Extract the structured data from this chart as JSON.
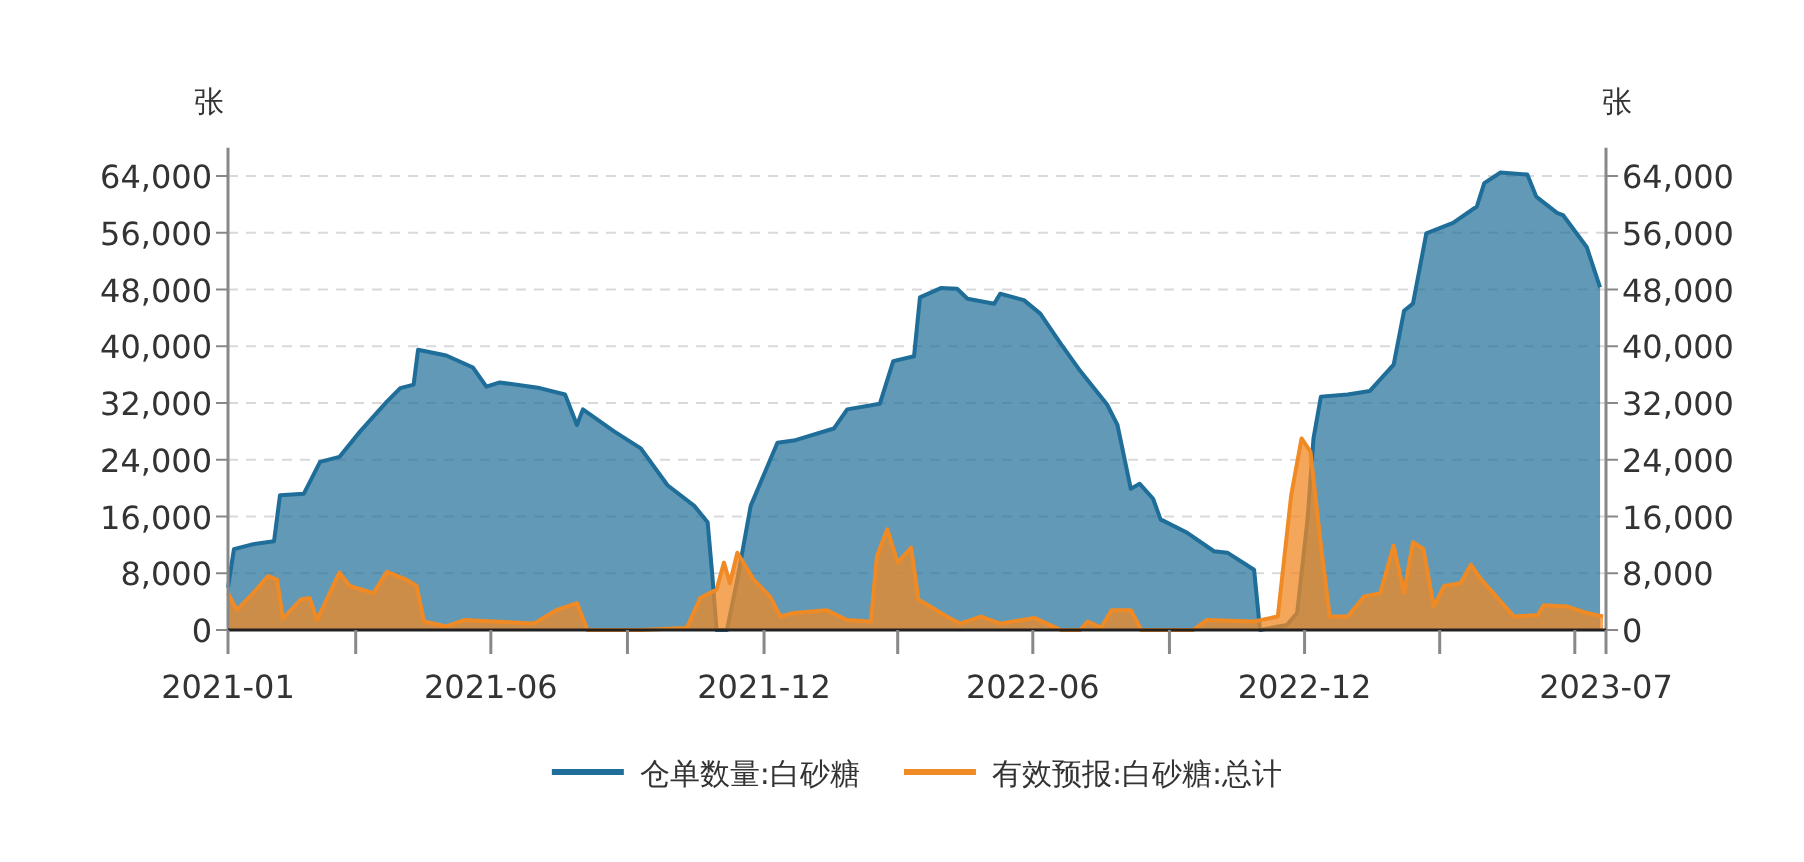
{
  "chart_data": {
    "type": "area",
    "ylabel": "张",
    "y2label": "张",
    "xlim": [
      "2021-01-04",
      "2023-07-21"
    ],
    "xticks": [
      {
        "value": "2021-01-04",
        "label": "2021-01"
      },
      {
        "value": "2021-03-31",
        "label": null
      },
      {
        "value": "2021-06-30",
        "label": "2021-06"
      },
      {
        "value": "2021-09-30",
        "label": null
      },
      {
        "value": "2021-12-31",
        "label": "2021-12"
      },
      {
        "value": "2022-03-31",
        "label": null
      },
      {
        "value": "2022-06-30",
        "label": "2022-06"
      },
      {
        "value": "2022-09-30",
        "label": null
      },
      {
        "value": "2022-12-30",
        "label": "2022-12"
      },
      {
        "value": "2023-03-31",
        "label": null
      },
      {
        "value": "2023-06-30",
        "label": null
      },
      {
        "value": "2023-07-21",
        "label": "2023-07"
      }
    ],
    "ylim": [
      0,
      68000
    ],
    "yticks": [
      0,
      {
        "value": 8000,
        "label": "8,000"
      },
      {
        "value": 16000,
        "label": "16,000"
      },
      {
        "value": 24000,
        "label": "24,000"
      },
      {
        "value": 32000,
        "label": "32,000"
      },
      {
        "value": 40000,
        "label": "40,000"
      },
      {
        "value": 48000,
        "label": "48,000"
      },
      {
        "value": 56000,
        "label": "56,000"
      },
      {
        "value": 64000,
        "label": "64,000"
      }
    ],
    "y2lim": [
      0,
      68000
    ],
    "y2ticks": [
      0,
      {
        "value": 8000,
        "label": "8,000"
      },
      {
        "value": 16000,
        "label": "16,000"
      },
      {
        "value": 24000,
        "label": "24,000"
      },
      {
        "value": 32000,
        "label": "32,000"
      },
      {
        "value": 40000,
        "label": "40,000"
      },
      {
        "value": 48000,
        "label": "48,000"
      },
      {
        "value": 56000,
        "label": "56,000"
      },
      {
        "value": 64000,
        "label": "64,000"
      }
    ],
    "grid": "y",
    "legend": "bottom",
    "series": [
      {
        "name": "仓单数量:白砂糖",
        "color": "#1f6d99",
        "x": [
          "2021-01-04",
          "2021-01-08",
          "2021-01-21",
          "2021-02-04",
          "2021-02-08",
          "2021-02-24",
          "2021-03-07",
          "2021-03-20",
          "2021-04-03",
          "2021-04-21",
          "2021-04-30",
          "2021-05-09",
          "2021-05-12",
          "2021-05-31",
          "2021-06-18",
          "2021-06-27",
          "2021-07-06",
          "2021-08-02",
          "2021-08-19",
          "2021-08-27",
          "2021-08-31",
          "2021-09-21",
          "2021-10-09",
          "2021-10-27",
          "2021-11-14",
          "2021-11-23",
          "2021-11-26",
          "2021-11-29",
          "2021-12-06",
          "2021-12-13",
          "2021-12-22",
          "2022-01-09",
          "2022-01-20",
          "2022-02-16",
          "2022-02-25",
          "2022-03-19",
          "2022-03-28",
          "2022-04-11",
          "2022-04-15",
          "2022-04-29",
          "2022-05-10",
          "2022-05-17",
          "2022-06-04",
          "2022-06-08",
          "2022-06-24",
          "2022-07-05",
          "2022-07-19",
          "2022-08-01",
          "2022-08-19",
          "2022-08-26",
          "2022-09-04",
          "2022-09-10",
          "2022-09-19",
          "2022-09-24",
          "2022-10-12",
          "2022-10-30",
          "2022-11-08",
          "2022-11-26",
          "2022-11-30",
          "2022-12-18",
          "2022-12-25",
          "2023-01-01",
          "2023-01-05",
          "2023-01-10",
          "2023-01-28",
          "2023-02-12",
          "2023-02-28",
          "2023-03-07",
          "2023-03-13",
          "2023-03-22",
          "2023-04-09",
          "2023-04-25",
          "2023-04-30",
          "2023-05-11",
          "2023-05-29",
          "2023-06-04",
          "2023-06-18",
          "2023-06-22",
          "2023-07-08",
          "2023-07-17"
        ],
        "values": [
          6000,
          11400,
          12100,
          12500,
          19000,
          19200,
          23700,
          24400,
          28000,
          32200,
          34100,
          34600,
          39500,
          38700,
          37000,
          34300,
          34900,
          34100,
          33200,
          28900,
          31100,
          28000,
          25600,
          20400,
          17500,
          15200,
          8100,
          0,
          0,
          7100,
          17500,
          26400,
          26700,
          28400,
          31100,
          31900,
          37900,
          38600,
          46900,
          48200,
          48100,
          46700,
          46000,
          47400,
          46500,
          44600,
          40300,
          36500,
          31800,
          28900,
          19900,
          20600,
          18500,
          15600,
          13700,
          11100,
          10900,
          8500,
          0,
          700,
          2400,
          15600,
          27000,
          32900,
          33200,
          33700,
          37400,
          45000,
          46000,
          55900,
          57400,
          59700,
          63000,
          64500,
          64200,
          61100,
          58800,
          58500,
          54000,
          48300
        ]
      },
      {
        "name": "有效预报:白砂糖:总计",
        "color": "#f08a24",
        "x": [
          "2021-01-04",
          "2021-01-10",
          "2021-01-21",
          "2021-01-31",
          "2021-02-06",
          "2021-02-10",
          "2021-02-22",
          "2021-02-28",
          "2021-03-05",
          "2021-03-20",
          "2021-03-27",
          "2021-04-12",
          "2021-04-21",
          "2021-05-04",
          "2021-05-11",
          "2021-05-16",
          "2021-05-31",
          "2021-06-12",
          "2021-07-02",
          "2021-07-29",
          "2021-08-13",
          "2021-08-27",
          "2021-09-03",
          "2021-10-09",
          "2021-11-09",
          "2021-11-18",
          "2021-11-29",
          "2021-12-04",
          "2021-12-08",
          "2021-12-13",
          "2021-12-24",
          "2022-01-04",
          "2022-01-11",
          "2022-01-20",
          "2022-02-11",
          "2022-02-25",
          "2022-03-13",
          "2022-03-17",
          "2022-03-24",
          "2022-03-31",
          "2022-04-09",
          "2022-04-14",
          "2022-05-03",
          "2022-05-12",
          "2022-05-26",
          "2022-06-08",
          "2022-07-01",
          "2022-07-19",
          "2022-08-01",
          "2022-08-06",
          "2022-08-15",
          "2022-08-22",
          "2022-09-04",
          "2022-09-11",
          "2022-10-16",
          "2022-10-25",
          "2022-11-26",
          "2022-12-12",
          "2022-12-21",
          "2022-12-28",
          "2023-01-03",
          "2023-01-10",
          "2023-01-16",
          "2023-01-28",
          "2023-02-08",
          "2023-02-19",
          "2023-02-28",
          "2023-03-07",
          "2023-03-13",
          "2023-03-20",
          "2023-03-27",
          "2023-04-03",
          "2023-04-14",
          "2023-04-21",
          "2023-04-28",
          "2023-05-20",
          "2023-06-05",
          "2023-06-09",
          "2023-06-25",
          "2023-07-08",
          "2023-07-19"
        ],
        "values": [
          5200,
          2800,
          5200,
          7600,
          7100,
          1600,
          4300,
          4500,
          1400,
          8100,
          6200,
          5200,
          8200,
          7100,
          6200,
          1200,
          500,
          1400,
          1200,
          900,
          2800,
          3800,
          0,
          0,
          300,
          4500,
          5700,
          9500,
          6600,
          10900,
          7100,
          4700,
          1900,
          2400,
          2800,
          1400,
          1200,
          10400,
          14200,
          9500,
          11600,
          4300,
          1900,
          900,
          1900,
          900,
          1700,
          0,
          0,
          1200,
          300,
          2800,
          2800,
          0,
          0,
          1400,
          1200,
          1900,
          19000,
          27000,
          25100,
          11900,
          1900,
          1900,
          4700,
          5200,
          11900,
          5200,
          12400,
          11400,
          3300,
          6200,
          6600,
          9200,
          7100,
          1900,
          2100,
          3500,
          3300,
          2400,
          1900
        ]
      }
    ]
  }
}
